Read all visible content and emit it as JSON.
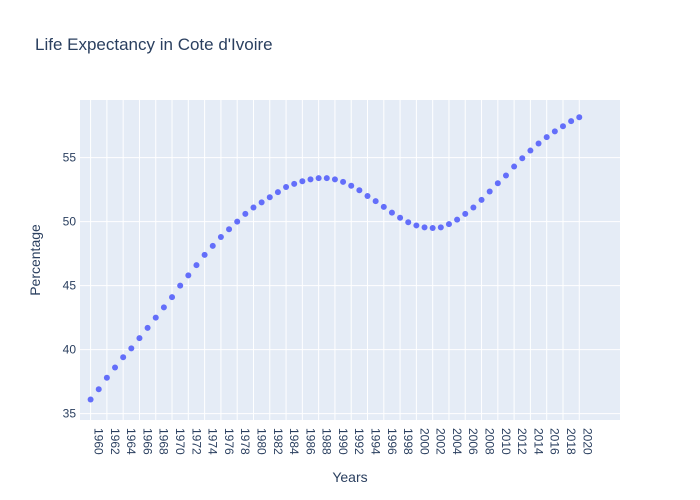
{
  "chart_data": {
    "type": "scatter",
    "title": "Life Expectancy in Cote d'Ivoire",
    "xlabel": "Years",
    "ylabel": "Percentage",
    "xlim": [
      1958.7,
      2025
    ],
    "ylim": [
      34.5,
      59.5
    ],
    "x_ticks": [
      "1960",
      "1962",
      "1964",
      "1966",
      "1968",
      "1970",
      "1972",
      "1974",
      "1976",
      "1978",
      "1980",
      "1982",
      "1984",
      "1986",
      "1988",
      "1990",
      "1992",
      "1994",
      "1996",
      "1998",
      "2000",
      "2002",
      "2004",
      "2006",
      "2008",
      "2010",
      "2012",
      "2014",
      "2016",
      "2018",
      "2020"
    ],
    "y_ticks": [
      35,
      40,
      45,
      50,
      55
    ],
    "grid": true,
    "legend": "none",
    "marker_color": "#636efa",
    "plot_background": "#e5ecf6",
    "series": [
      {
        "x": [
          1960,
          1961,
          1962,
          1963,
          1964,
          1965,
          1966,
          1967,
          1968,
          1969,
          1970,
          1971,
          1972,
          1973,
          1974,
          1975,
          1976,
          1977,
          1978,
          1979,
          1980,
          1981,
          1982,
          1983,
          1984,
          1985,
          1986,
          1987,
          1988,
          1989,
          1990,
          1991,
          1992,
          1993,
          1994,
          1995,
          1996,
          1997,
          1998,
          1999,
          2000,
          2001,
          2002,
          2003,
          2004,
          2005,
          2006,
          2007,
          2008,
          2009,
          2010,
          2011,
          2012,
          2013,
          2014,
          2015,
          2016,
          2017,
          2018,
          2019,
          2020
        ],
        "values": [
          36.1,
          36.9,
          37.8,
          38.6,
          39.4,
          40.1,
          40.9,
          41.7,
          42.5,
          43.3,
          44.1,
          45.0,
          45.8,
          46.6,
          47.4,
          48.1,
          48.8,
          49.4,
          50.0,
          50.6,
          51.1,
          51.5,
          51.9,
          52.3,
          52.7,
          52.95,
          53.15,
          53.3,
          53.4,
          53.4,
          53.3,
          53.1,
          52.8,
          52.45,
          52.0,
          51.6,
          51.15,
          50.7,
          50.3,
          49.95,
          49.7,
          49.55,
          49.5,
          49.55,
          49.8,
          50.15,
          50.6,
          51.1,
          51.7,
          52.35,
          53.0,
          53.6,
          54.3,
          54.95,
          55.55,
          56.1,
          56.6,
          57.05,
          57.45,
          57.85,
          58.15
        ]
      }
    ]
  }
}
